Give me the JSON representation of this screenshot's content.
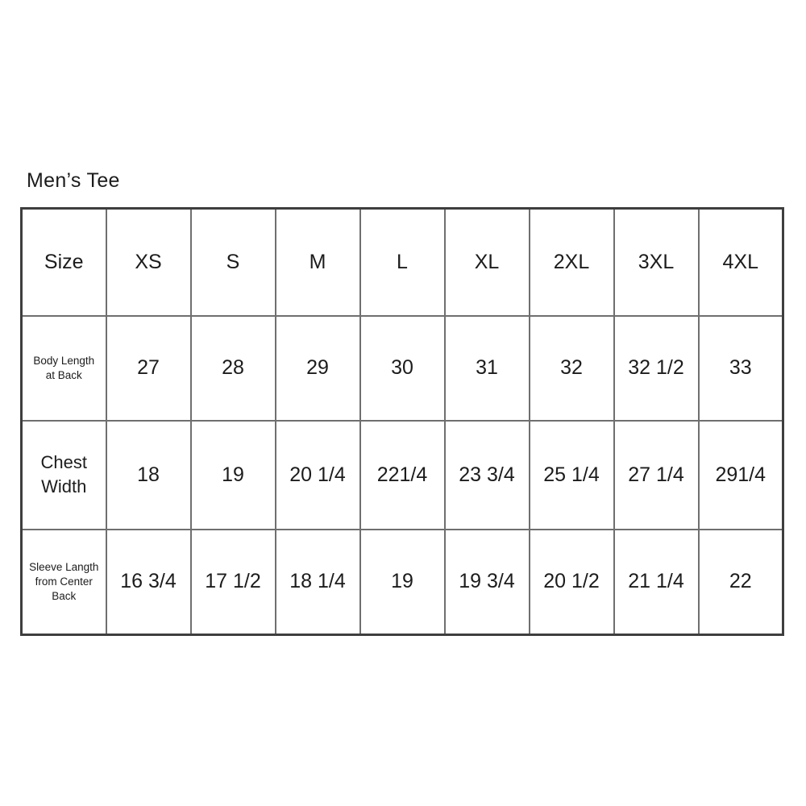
{
  "title": "Men’s Tee",
  "size_chart": {
    "columns": [
      "Size",
      "XS",
      "S",
      "M",
      "L",
      "XL",
      "2XL",
      "3XL",
      "4XL"
    ],
    "rows": [
      {
        "label": "Body Length at Back",
        "values": [
          "27",
          "28",
          "29",
          "30",
          "31",
          "32",
          "32 1/2",
          "33"
        ]
      },
      {
        "label": "Chest Width",
        "values": [
          "18",
          "19",
          "20 1/4",
          "221/4",
          "23 3/4",
          "25 1/4",
          "27 1/4",
          "291/4"
        ]
      },
      {
        "label": "Sleeve Langth from Center Back",
        "values": [
          "16 3/4",
          "17 1/2",
          "18 1/4",
          "19",
          "19 3/4",
          "20 1/2",
          "21 1/4",
          "22"
        ]
      }
    ],
    "colors": {
      "background": "#ffffff",
      "text": "#1c1c1c",
      "grid_line": "#6f6f6f",
      "outer_border": "#3e3e3e"
    }
  }
}
